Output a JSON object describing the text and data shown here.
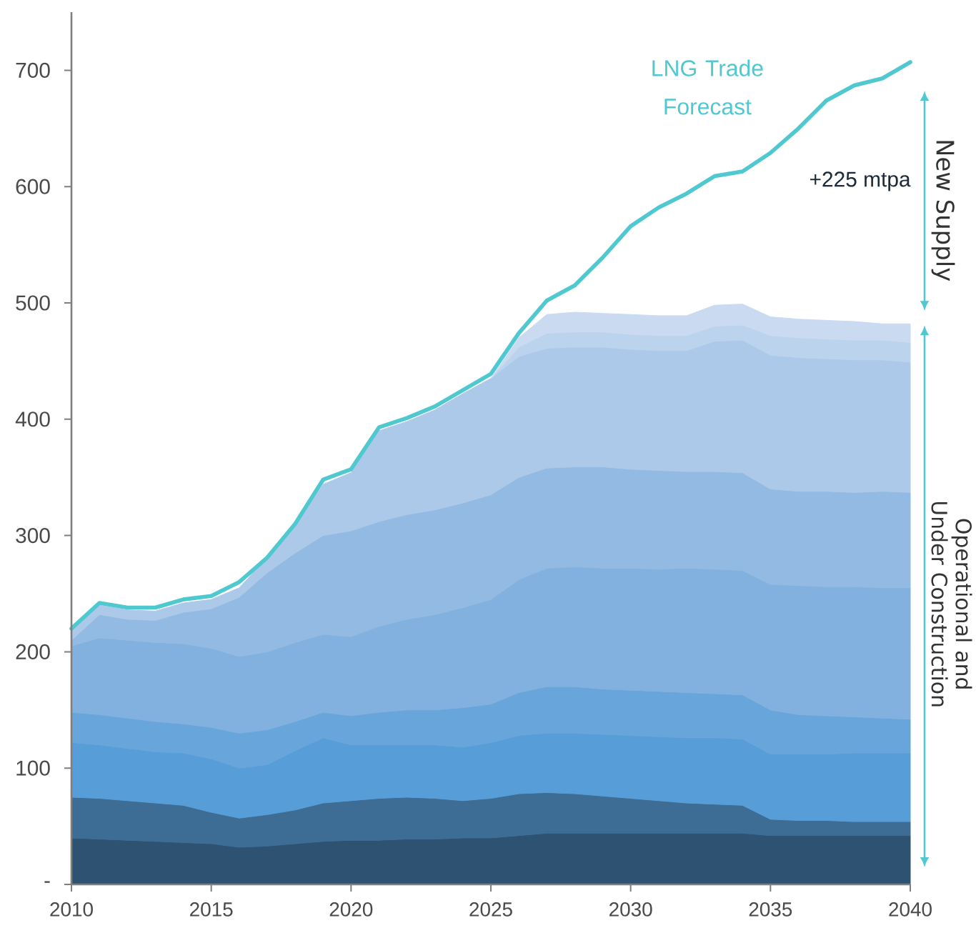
{
  "chart_data": {
    "type": "area",
    "stacked": true,
    "x": [
      2010,
      2011,
      2012,
      2013,
      2014,
      2015,
      2016,
      2017,
      2018,
      2019,
      2020,
      2021,
      2022,
      2023,
      2024,
      2025,
      2026,
      2027,
      2028,
      2029,
      2030,
      2031,
      2032,
      2033,
      2034,
      2035,
      2036,
      2037,
      2038,
      2039,
      2040
    ],
    "xlim": [
      2010,
      2040
    ],
    "xticks": [
      2010,
      2015,
      2020,
      2025,
      2030,
      2035,
      2040
    ],
    "ylim": [
      0,
      750
    ],
    "yticks": [
      {
        "value": 0,
        "label": "-"
      },
      100,
      200,
      300,
      400,
      500,
      600,
      700
    ],
    "series": [
      {
        "color": "#2e5272",
        "values": [
          40,
          39,
          38,
          37,
          36,
          35,
          32,
          33,
          35,
          37,
          38,
          38,
          39,
          39,
          40,
          40,
          42,
          44,
          44,
          44,
          44,
          44,
          44,
          44,
          44,
          42,
          42,
          42,
          42,
          42,
          42
        ]
      },
      {
        "color": "#3d6c95",
        "values": [
          35,
          35,
          34,
          33,
          32,
          27,
          25,
          27,
          29,
          33,
          34,
          36,
          36,
          35,
          32,
          34,
          36,
          35,
          34,
          32,
          30,
          28,
          26,
          25,
          24,
          14,
          13,
          13,
          12,
          12,
          12
        ]
      },
      {
        "color": "#579dd7",
        "values": [
          47,
          46,
          45,
          44,
          45,
          46,
          43,
          43,
          51,
          56,
          48,
          46,
          45,
          46,
          46,
          48,
          50,
          51,
          52,
          53,
          54,
          55,
          56,
          57,
          57,
          56,
          57,
          57,
          59,
          59,
          59
        ]
      },
      {
        "color": "#67a5db",
        "values": [
          26,
          26,
          26,
          26,
          25,
          27,
          30,
          30,
          25,
          22,
          25,
          28,
          30,
          30,
          34,
          33,
          37,
          40,
          40,
          39,
          39,
          39,
          39,
          38,
          38,
          38,
          34,
          33,
          31,
          30,
          29
        ]
      },
      {
        "color": "#82b1df",
        "values": [
          57,
          66,
          67,
          68,
          69,
          68,
          66,
          67,
          68,
          67,
          68,
          74,
          78,
          82,
          86,
          90,
          97,
          102,
          103,
          104,
          105,
          105,
          107,
          107,
          107,
          108,
          111,
          111,
          112,
          112,
          113
        ]
      },
      {
        "color": "#92bae3",
        "values": [
          5,
          20,
          18,
          19,
          27,
          34,
          51,
          68,
          77,
          85,
          91,
          90,
          90,
          90,
          90,
          90,
          88,
          86,
          86,
          87,
          85,
          85,
          83,
          84,
          84,
          82,
          81,
          82,
          81,
          83,
          82
        ]
      },
      {
        "color": "#adc9e9",
        "values": [
          8,
          8,
          8,
          8,
          8,
          8,
          8,
          13,
          24,
          44,
          50,
          78,
          80,
          86,
          94,
          100,
          104,
          103,
          103,
          103,
          103,
          103,
          104,
          112,
          114,
          115,
          115,
          114,
          114,
          113,
          112
        ]
      },
      {
        "color": "#bcd3ee",
        "values": [
          null,
          null,
          null,
          null,
          null,
          null,
          null,
          null,
          null,
          null,
          null,
          null,
          null,
          null,
          null,
          0,
          8,
          13,
          13,
          13,
          13,
          13,
          13,
          13,
          13,
          17,
          17,
          17,
          17,
          17,
          17
        ]
      },
      {
        "color": "#cadbf1",
        "values": [
          null,
          null,
          null,
          null,
          null,
          null,
          null,
          null,
          null,
          null,
          null,
          null,
          null,
          null,
          null,
          0,
          8,
          16,
          17,
          16,
          17,
          17,
          17,
          18,
          18,
          16,
          16,
          16,
          16,
          14,
          16
        ]
      },
      {
        "name": "LNG Trade Forecast",
        "type": "line",
        "color": "#4fc8d0",
        "values": [
          220,
          242,
          238,
          238,
          245,
          248,
          260,
          281,
          310,
          348,
          357,
          393,
          401,
          411,
          425,
          439,
          474,
          502,
          515,
          539,
          566,
          582,
          594,
          609,
          613,
          629,
          650,
          674,
          687,
          693,
          707
        ]
      }
    ],
    "annotations": [
      "+225 mtpa",
      "New Supply",
      "Operational and Under Construction"
    ]
  }
}
